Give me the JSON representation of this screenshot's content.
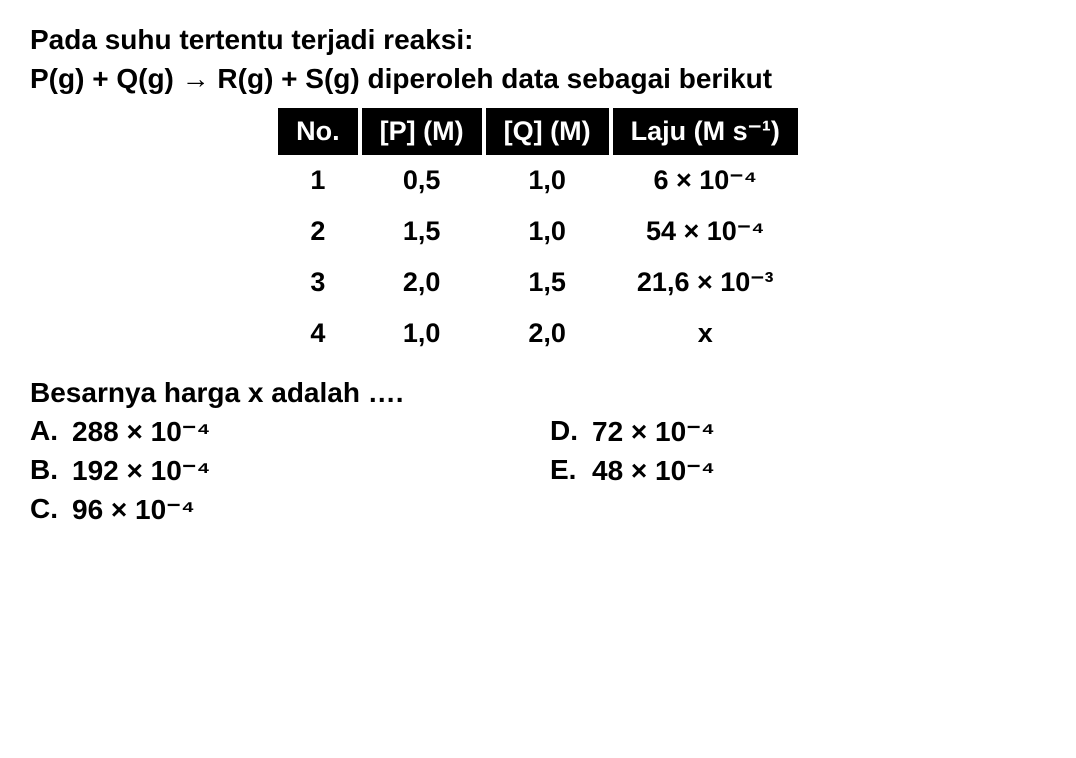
{
  "problem": {
    "line1": "Pada suhu tertentu terjadi reaksi:",
    "line2": "P(g) + Q(g) → R(g) + S(g) diperoleh data sebagai berikut"
  },
  "table": {
    "headers": {
      "no": "No.",
      "p": "[P] (M)",
      "q": "[Q] (M)",
      "rate": "Laju (M s⁻¹)"
    },
    "rows": [
      {
        "no": "1",
        "p": "0,5",
        "q": "1,0",
        "rate": "6 × 10⁻⁴"
      },
      {
        "no": "2",
        "p": "1,5",
        "q": "1,0",
        "rate": "54 × 10⁻⁴"
      },
      {
        "no": "3",
        "p": "2,0",
        "q": "1,5",
        "rate": "21,6 × 10⁻³"
      },
      {
        "no": "4",
        "p": "1,0",
        "q": "2,0",
        "rate": "x"
      }
    ]
  },
  "question": "Besarnya harga x adalah ….",
  "options": {
    "a": {
      "label": "A.",
      "value": "288 × 10⁻⁴"
    },
    "b": {
      "label": "B.",
      "value": "192 × 10⁻⁴"
    },
    "c": {
      "label": "C.",
      "value": "96 × 10⁻⁴"
    },
    "d": {
      "label": "D.",
      "value": "72 × 10⁻⁴"
    },
    "e": {
      "label": "E.",
      "value": "48 × 10⁻⁴"
    }
  }
}
